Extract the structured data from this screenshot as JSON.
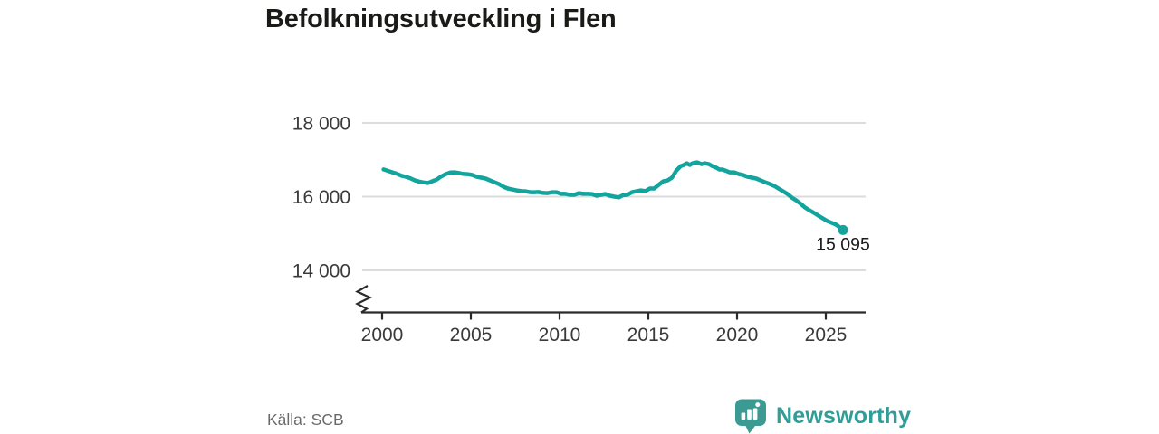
{
  "title": "Befolkningsutveckling i Flen",
  "source": "Källa: SCB",
  "brand": {
    "name": "Newsworthy",
    "text_color": "#2f9e98",
    "icon_color": "#3d9a93",
    "icon": "speech-bubble-bar-chart-icon"
  },
  "chart_data": {
    "type": "line",
    "title": "Befolkningsutveckling i Flen",
    "xlabel": "",
    "ylabel": "",
    "x_ticks": [
      2000,
      2005,
      2010,
      2015,
      2020,
      2025
    ],
    "y_ticks": [
      18000,
      16000,
      14000
    ],
    "y_tick_labels": [
      "18 000",
      "16 000",
      "14 000"
    ],
    "xlim": [
      1998.9,
      2027.3
    ],
    "ylim": [
      14000,
      18000
    ],
    "axis_break": true,
    "grid": true,
    "legend": "none",
    "line_color": "#12a49d",
    "grid_color": "#dcdcdc",
    "axis_color": "#2b2b2b",
    "tick_label_color": "#3a3a3a",
    "annotation_color": "#1a1a1a",
    "end_label": "15 095",
    "end_value": 15095,
    "points": [
      [
        2000.08,
        16738
      ],
      [
        2000.33,
        16700
      ],
      [
        2000.58,
        16660
      ],
      [
        2000.83,
        16620
      ],
      [
        2001.08,
        16570
      ],
      [
        2001.33,
        16540
      ],
      [
        2001.58,
        16500
      ],
      [
        2001.83,
        16445
      ],
      [
        2002.08,
        16410
      ],
      [
        2002.33,
        16385
      ],
      [
        2002.58,
        16370
      ],
      [
        2002.83,
        16420
      ],
      [
        2003.08,
        16465
      ],
      [
        2003.33,
        16550
      ],
      [
        2003.58,
        16610
      ],
      [
        2003.83,
        16655
      ],
      [
        2004.08,
        16660
      ],
      [
        2004.33,
        16640
      ],
      [
        2004.58,
        16615
      ],
      [
        2004.83,
        16610
      ],
      [
        2005.08,
        16590
      ],
      [
        2005.33,
        16540
      ],
      [
        2005.58,
        16515
      ],
      [
        2005.83,
        16490
      ],
      [
        2006.08,
        16440
      ],
      [
        2006.33,
        16390
      ],
      [
        2006.58,
        16340
      ],
      [
        2006.83,
        16270
      ],
      [
        2007.08,
        16220
      ],
      [
        2007.33,
        16195
      ],
      [
        2007.58,
        16170
      ],
      [
        2007.83,
        16150
      ],
      [
        2008.08,
        16145
      ],
      [
        2008.33,
        16120
      ],
      [
        2008.58,
        16120
      ],
      [
        2008.83,
        16125
      ],
      [
        2009.08,
        16100
      ],
      [
        2009.33,
        16095
      ],
      [
        2009.58,
        16120
      ],
      [
        2009.83,
        16120
      ],
      [
        2010.08,
        16075
      ],
      [
        2010.33,
        16075
      ],
      [
        2010.58,
        16050
      ],
      [
        2010.83,
        16050
      ],
      [
        2011.08,
        16095
      ],
      [
        2011.33,
        16075
      ],
      [
        2011.58,
        16075
      ],
      [
        2011.83,
        16070
      ],
      [
        2012.08,
        16025
      ],
      [
        2012.33,
        16050
      ],
      [
        2012.58,
        16070
      ],
      [
        2012.83,
        16025
      ],
      [
        2013.08,
        16000
      ],
      [
        2013.33,
        15980
      ],
      [
        2013.58,
        16040
      ],
      [
        2013.83,
        16050
      ],
      [
        2014.08,
        16120
      ],
      [
        2014.33,
        16145
      ],
      [
        2014.58,
        16170
      ],
      [
        2014.83,
        16150
      ],
      [
        2015.08,
        16220
      ],
      [
        2015.33,
        16220
      ],
      [
        2015.58,
        16320
      ],
      [
        2015.83,
        16415
      ],
      [
        2016.08,
        16440
      ],
      [
        2016.33,
        16515
      ],
      [
        2016.58,
        16710
      ],
      [
        2016.83,
        16830
      ],
      [
        2017.0,
        16860
      ],
      [
        2017.17,
        16905
      ],
      [
        2017.33,
        16860
      ],
      [
        2017.5,
        16905
      ],
      [
        2017.75,
        16930
      ],
      [
        2018.0,
        16880
      ],
      [
        2018.17,
        16905
      ],
      [
        2018.42,
        16880
      ],
      [
        2018.58,
        16835
      ],
      [
        2018.83,
        16785
      ],
      [
        2019.0,
        16735
      ],
      [
        2019.17,
        16735
      ],
      [
        2019.33,
        16710
      ],
      [
        2019.58,
        16660
      ],
      [
        2019.83,
        16660
      ],
      [
        2020.08,
        16615
      ],
      [
        2020.33,
        16590
      ],
      [
        2020.58,
        16540
      ],
      [
        2020.83,
        16515
      ],
      [
        2021.08,
        16490
      ],
      [
        2021.33,
        16440
      ],
      [
        2021.58,
        16390
      ],
      [
        2021.83,
        16345
      ],
      [
        2022.08,
        16295
      ],
      [
        2022.33,
        16220
      ],
      [
        2022.58,
        16150
      ],
      [
        2022.83,
        16075
      ],
      [
        2023.08,
        15975
      ],
      [
        2023.33,
        15900
      ],
      [
        2023.58,
        15805
      ],
      [
        2023.83,
        15705
      ],
      [
        2024.08,
        15630
      ],
      [
        2024.33,
        15560
      ],
      [
        2024.58,
        15485
      ],
      [
        2024.83,
        15410
      ],
      [
        2025.08,
        15340
      ],
      [
        2025.33,
        15290
      ],
      [
        2025.58,
        15240
      ],
      [
        2025.83,
        15150
      ],
      [
        2025.97,
        15095
      ]
    ]
  }
}
